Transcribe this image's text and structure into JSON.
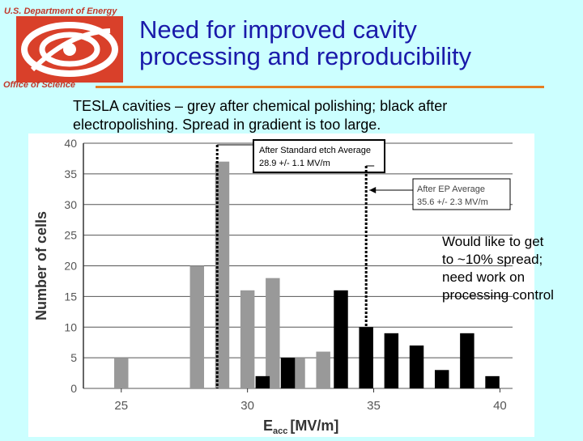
{
  "header": {
    "department": "U.S. Department of Energy",
    "office": "Office of Science",
    "title_line1": "Need for improved cavity",
    "title_line2": "processing and reproducibility"
  },
  "subtitle": {
    "line1": "TESLA cavities – grey after chemical polishing; black after",
    "line2": "electropolishing.  Spread in gradient is too large."
  },
  "note": "Would like to get\nto ~10% spread;\nneed work on\nprocessing control",
  "colors": {
    "grey_bars": "#999999",
    "black_bars": "#000000",
    "title": "#1a1aaa",
    "accent": "#e67e22"
  },
  "chart_data": {
    "type": "bar",
    "ylabel": "Number of cells",
    "xlabel_main": "E",
    "xlabel_sub": "acc",
    "xlabel_unit": "[MV/m]",
    "xlim": [
      23.5,
      40.5
    ],
    "ylim": [
      0,
      40
    ],
    "xticks": [
      25,
      30,
      35,
      40
    ],
    "yticks": [
      0,
      5,
      10,
      15,
      20,
      25,
      30,
      35,
      40
    ],
    "series": [
      {
        "color": "#999999",
        "x": [
          25,
          28,
          29,
          30,
          31,
          32,
          33
        ],
        "values": [
          5,
          20,
          37,
          16,
          18,
          5,
          6
        ]
      },
      {
        "color": "#000000",
        "x": [
          30.6,
          31.6,
          33.7,
          34.7,
          35.7,
          36.7,
          37.7,
          38.7,
          39.7
        ],
        "values": [
          2,
          5,
          16,
          10,
          9,
          7,
          3,
          9,
          2
        ]
      }
    ],
    "annotations": [
      {
        "line1": "After Standard etch Average",
        "line2": "28.9 +/- 1.1 MV/m",
        "x": 28.8
      },
      {
        "line1": "After EP Average",
        "line2": "35.6 +/- 2.3 MV/m",
        "x": 34.7
      }
    ]
  }
}
